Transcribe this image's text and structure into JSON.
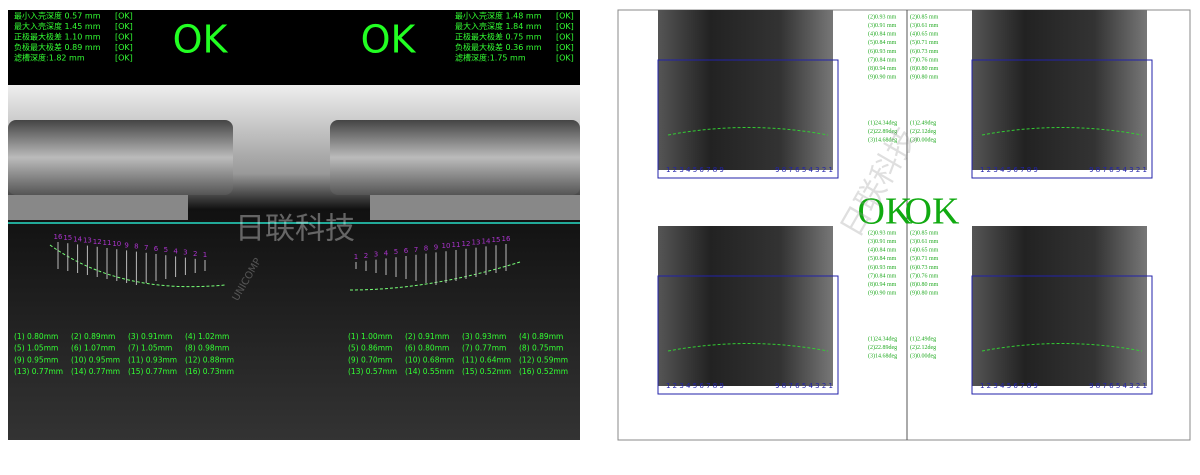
{
  "left_panel": {
    "specs_a": [
      {
        "label": "最小入壳深度 0.57 mm",
        "status": "[OK]"
      },
      {
        "label": "最大入壳深度 1.45 mm",
        "status": "[OK]"
      },
      {
        "label": "正极最大极差 1.10 mm",
        "status": "[OK]"
      },
      {
        "label": "负极最大极差 0.89 mm",
        "status": "[OK]"
      },
      {
        "label": "滤槽深度:1.82 mm",
        "status": "[OK]"
      }
    ],
    "result_a": "OK",
    "result_b": "OK",
    "specs_b": [
      {
        "label": "最小入壳深度 1.48 mm",
        "status": "[OK]"
      },
      {
        "label": "最大入壳深度 1.84 mm",
        "status": "[OK]"
      },
      {
        "label": "正极最大极差 0.75 mm",
        "status": "[OK]"
      },
      {
        "label": "负极最大极差 0.36 mm",
        "status": "[OK]"
      },
      {
        "label": "滤槽深度:1.75 mm",
        "status": "[OK]"
      }
    ],
    "indices_a": [
      "16",
      "15",
      "14",
      "13",
      "12",
      "11",
      "10",
      "9",
      "8",
      "7",
      "6",
      "5",
      "4",
      "3",
      "2",
      "1"
    ],
    "indices_b": [
      "1",
      "2",
      "3",
      "4",
      "5",
      "6",
      "7",
      "8",
      "9",
      "10",
      "11",
      "12",
      "13",
      "14",
      "15",
      "16"
    ],
    "measurements_a": [
      "(1) 0.80mm",
      "(2) 0.89mm",
      "(3) 0.91mm",
      "(4) 1.02mm",
      "(5) 1.05mm",
      "(6) 1.07mm",
      "(7) 1.05mm",
      "(8) 0.98mm",
      "(9) 0.95mm",
      "(10) 0.95mm",
      "(11) 0.93mm",
      "(12) 0.88mm",
      "(13) 0.77mm",
      "(14) 0.77mm",
      "(15) 0.77mm",
      "(16) 0.73mm"
    ],
    "measurements_b": [
      "(1) 1.00mm",
      "(2) 0.91mm",
      "(3) 0.93mm",
      "(4) 0.89mm",
      "(5) 0.86mm",
      "(6) 0.80mm",
      "(7) 0.77mm",
      "(8) 0.75mm",
      "(9) 0.70mm",
      "(10) 0.68mm",
      "(11) 0.64mm",
      "(12) 0.59mm",
      "(13) 0.57mm",
      "(14) 0.55mm",
      "(15) 0.52mm",
      "(16) 0.52mm"
    ]
  },
  "right_panel": {
    "result_left": "OK",
    "result_right": "OK",
    "quadrants": [
      {
        "depths": [
          "(2)0.93 mm",
          "(3)0.91 mm",
          "(4)0.84 mm",
          "(5)0.84 mm",
          "(6)0.93 mm",
          "(7)0.84 mm",
          "(8)0.94 mm",
          "(9)0.90 mm"
        ],
        "angles": [
          "(1)24.34deg",
          "(2)22.89deg",
          "(3)14.68deg"
        ],
        "index_left": "1 2 3 4 5 6 7 8 9",
        "index_right": "9 8 7 6 5 4 3 2 1"
      },
      {
        "depths": [
          "(2)0.85 mm",
          "(3)0.61 mm",
          "(4)0.65 mm",
          "(5)0.71 mm",
          "(6)0.73 mm",
          "(7)0.76 mm",
          "(8)0.80 mm",
          "(9)0.80 mm"
        ],
        "angles": [
          "(1)2.49deg",
          "(2)2.12deg",
          "(3)0.00deg"
        ],
        "index_left": "1 2 3 4 5 6 7 8 9",
        "index_right": "9 8 7 6 5 4 3 2 1"
      },
      {
        "depths": [
          "(2)0.93 mm",
          "(3)0.91 mm",
          "(4)0.84 mm",
          "(5)0.84 mm",
          "(6)0.93 mm",
          "(7)0.84 mm",
          "(8)0.94 mm",
          "(9)0.90 mm"
        ],
        "angles": [
          "(1)24.34deg",
          "(2)22.89deg",
          "(3)14.68deg"
        ],
        "index_left": "1 2 3 4 5 6 7 8 9",
        "index_right": "9 8 7 6 5 4 3 2 1"
      },
      {
        "depths": [
          "(2)0.85 mm",
          "(3)0.61 mm",
          "(4)0.65 mm",
          "(5)0.71 mm",
          "(6)0.73 mm",
          "(7)0.76 mm",
          "(8)0.80 mm",
          "(9)0.80 mm"
        ],
        "angles": [
          "(1)2.49deg",
          "(2)2.12deg",
          "(3)0.00deg"
        ],
        "index_left": "1 2 3 4 5 6 7 8 9",
        "index_right": "9 8 7 6 5 4 3 2 1"
      }
    ]
  },
  "watermark": {
    "brand": "日联科技",
    "brand_en": "UNICOMP"
  }
}
